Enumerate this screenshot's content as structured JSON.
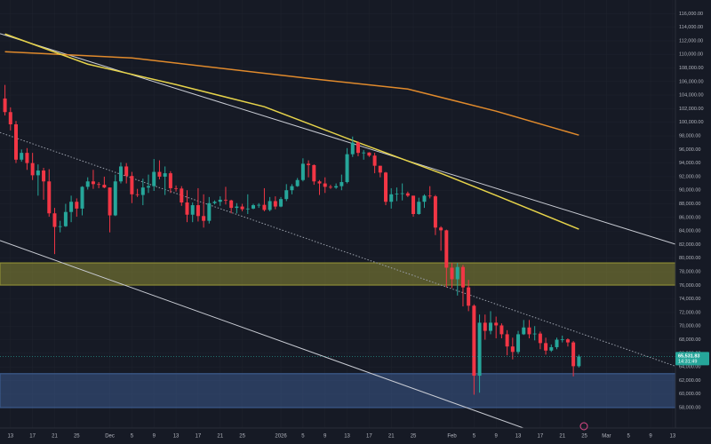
{
  "chart_data": {
    "type": "candlestick",
    "up_color": "#26a69a",
    "down_color": "#f23645",
    "xlim": [
      -1.9,
      120.5
    ],
    "ylim": [
      55000,
      118000
    ],
    "grid": true,
    "xticks": [
      {
        "value": 0,
        "label": "13"
      },
      {
        "value": 4,
        "label": "17"
      },
      {
        "value": 8,
        "label": "21"
      },
      {
        "value": 12,
        "label": "25"
      },
      {
        "value": 18,
        "label": "Dec"
      },
      {
        "value": 22,
        "label": "5"
      },
      {
        "value": 26,
        "label": "9"
      },
      {
        "value": 30,
        "label": "13"
      },
      {
        "value": 34,
        "label": "17"
      },
      {
        "value": 38,
        "label": "21"
      },
      {
        "value": 42,
        "label": "25"
      },
      {
        "value": 49,
        "label": "2026"
      },
      {
        "value": 53,
        "label": "5"
      },
      {
        "value": 57,
        "label": "9"
      },
      {
        "value": 61,
        "label": "13"
      },
      {
        "value": 65,
        "label": "17"
      },
      {
        "value": 69,
        "label": "21"
      },
      {
        "value": 73,
        "label": "25"
      },
      {
        "value": 80,
        "label": "Feb"
      },
      {
        "value": 84,
        "label": "5"
      },
      {
        "value": 88,
        "label": "9"
      },
      {
        "value": 92,
        "label": "13"
      },
      {
        "value": 96,
        "label": "17"
      },
      {
        "value": 100,
        "label": "21"
      },
      {
        "value": 104,
        "label": "25"
      },
      {
        "value": 108,
        "label": "Mar"
      },
      {
        "value": 112,
        "label": "5"
      },
      {
        "value": 116,
        "label": "9"
      },
      {
        "value": 120,
        "label": "13"
      }
    ],
    "yticks": [
      {
        "value": 58000,
        "label": "58,000.00"
      },
      {
        "value": 60000,
        "label": "60,000.00"
      },
      {
        "value": 62000,
        "label": "62,000.00"
      },
      {
        "value": 64000,
        "label": "64,000.00"
      },
      {
        "value": 66000,
        "label": "66,000.00"
      },
      {
        "value": 68000,
        "label": "68,000.00"
      },
      {
        "value": 70000,
        "label": "70,000.00"
      },
      {
        "value": 72000,
        "label": "72,000.00"
      },
      {
        "value": 74000,
        "label": "74,000.00"
      },
      {
        "value": 76000,
        "label": "76,000.00"
      },
      {
        "value": 78000,
        "label": "78,000.00"
      },
      {
        "value": 80000,
        "label": "80,000.00"
      },
      {
        "value": 82000,
        "label": "82,000.00"
      },
      {
        "value": 84000,
        "label": "84,000.00"
      },
      {
        "value": 86000,
        "label": "86,000.00"
      },
      {
        "value": 88000,
        "label": "88,000.00"
      },
      {
        "value": 90000,
        "label": "90,000.00"
      },
      {
        "value": 92000,
        "label": "92,000.00"
      },
      {
        "value": 94000,
        "label": "94,000.00"
      },
      {
        "value": 96000,
        "label": "96,000.00"
      },
      {
        "value": 98000,
        "label": "98,000.00"
      },
      {
        "value": 100000,
        "label": "100,000.00"
      },
      {
        "value": 102000,
        "label": "102,000.00"
      },
      {
        "value": 104000,
        "label": "104,000.00"
      },
      {
        "value": 106000,
        "label": "106,000.00"
      },
      {
        "value": 108000,
        "label": "108,000.00"
      },
      {
        "value": 110000,
        "label": "110,000.00"
      },
      {
        "value": 112000,
        "label": "112,000.00"
      },
      {
        "value": 114000,
        "label": "114,000.00"
      },
      {
        "value": 116000,
        "label": "116,000.00"
      }
    ],
    "zones": [
      {
        "low": 76040,
        "high": 79300,
        "color": "#8c8a35"
      },
      {
        "low": 58010,
        "high": 63000,
        "color": "#3c5a8c"
      }
    ],
    "trendlines": [
      {
        "x": [
          -1.9,
          120.5
        ],
        "values": [
          113050,
          82050
        ],
        "color": "#c9ccd4",
        "dashed": false
      },
      {
        "x": [
          -1.9,
          96.5
        ],
        "values": [
          82600,
          53970
        ],
        "color": "#c9ccd4",
        "dashed": false
      },
      {
        "x": [
          -1.9,
          120.5
        ],
        "values": [
          98500,
          64100
        ],
        "color": "#9aa0ab",
        "dashed": true
      }
    ],
    "series": [
      {
        "color": "#e08a2c",
        "x": [
          -1,
          22,
          54,
          72,
          88,
          103
        ],
        "values": [
          110390,
          109470,
          106470,
          104900,
          101640,
          98110
        ]
      },
      {
        "color": "#e6d34a",
        "x": [
          -1,
          14,
          30,
          46,
          62,
          78,
          88,
          103
        ],
        "values": [
          113000,
          108560,
          105550,
          102290,
          97330,
          92490,
          89230,
          84270
        ]
      }
    ],
    "candles": {
      "x": [
        -1,
        0,
        1,
        2,
        3,
        4,
        5,
        6,
        7,
        8,
        9,
        10,
        11,
        12,
        13,
        14,
        15,
        16,
        17,
        18,
        19,
        20,
        21,
        22,
        23,
        24,
        25,
        26,
        27,
        28,
        29,
        30,
        31,
        32,
        33,
        34,
        35,
        36,
        37,
        38,
        39,
        40,
        41,
        42,
        43,
        44,
        45,
        46,
        47,
        48,
        49,
        50,
        51,
        52,
        53,
        54,
        55,
        56,
        57,
        58,
        59,
        60,
        61,
        62,
        63,
        64,
        65,
        66,
        67,
        68,
        69,
        70,
        71,
        72,
        73,
        74,
        75,
        76,
        77,
        78,
        79,
        80,
        81,
        82,
        83,
        84,
        85,
        86,
        87,
        88,
        89,
        90,
        91,
        92,
        93,
        94,
        95,
        96,
        97,
        98,
        99,
        100,
        101,
        102,
        103
      ],
      "open": [
        103500,
        101500,
        99700,
        94500,
        95500,
        94000,
        92200,
        92900,
        91300,
        86600,
        84600,
        84700,
        86800,
        88300,
        87300,
        90500,
        91300,
        90900,
        90800,
        90400,
        86300,
        91300,
        93500,
        92100,
        89400,
        89300,
        90400,
        90600,
        92700,
        92000,
        92500,
        90300,
        90250,
        88200,
        86400,
        87800,
        86200,
        85500,
        88100,
        88300,
        88600,
        88500,
        87400,
        87600,
        87200,
        87300,
        87800,
        87850,
        87100,
        88400,
        87600,
        88700,
        90000,
        90600,
        91500,
        93900,
        93700,
        91300,
        91000,
        90500,
        90400,
        90600,
        91200,
        95300,
        97000,
        95500,
        95550,
        95100,
        93600,
        92600,
        88300,
        89400,
        89500,
        89550,
        89200,
        86500,
        88300,
        89200,
        89100,
        84500,
        84100,
        78600,
        76900,
        78700,
        75700,
        73000,
        62700,
        70500,
        69300,
        70500,
        70100,
        68800,
        67000,
        66200,
        68800,
        69800,
        68800,
        68900,
        67500,
        66400,
        66900,
        68000,
        68050,
        67600,
        64100
      ],
      "high": [
        105500,
        102200,
        100200,
        96000,
        96200,
        95500,
        93800,
        93300,
        93100,
        87400,
        85500,
        88000,
        89200,
        88800,
        90600,
        91900,
        93000,
        91200,
        92000,
        90400,
        92300,
        94100,
        94000,
        92700,
        90200,
        91700,
        92300,
        94600,
        94400,
        93500,
        92800,
        90700,
        90600,
        90000,
        88200,
        90300,
        89400,
        89000,
        88500,
        89100,
        90500,
        88600,
        88100,
        88000,
        89400,
        88000,
        88100,
        90300,
        89000,
        89100,
        89000,
        90900,
        90900,
        91800,
        94700,
        94400,
        93800,
        91500,
        91900,
        90800,
        91000,
        92300,
        96200,
        97900,
        97200,
        95900,
        95600,
        95500,
        93600,
        92700,
        90300,
        90400,
        91000,
        89800,
        89200,
        88900,
        89400,
        90600,
        89300,
        84700,
        84200,
        79300,
        79300,
        79000,
        76800,
        73200,
        71700,
        71700,
        72200,
        71400,
        70400,
        69400,
        68300,
        69300,
        70900,
        70900,
        70000,
        69200,
        68300,
        67300,
        68300,
        68600,
        68200,
        67800,
        65800
      ],
      "low": [
        101000,
        98800,
        94000,
        94200,
        93000,
        91500,
        89200,
        88600,
        86100,
        80600,
        83800,
        84600,
        85300,
        86100,
        86300,
        90100,
        90200,
        90300,
        90300,
        83800,
        86200,
        91000,
        91000,
        88100,
        89000,
        87800,
        89600,
        89900,
        91600,
        89300,
        89600,
        89800,
        87700,
        85300,
        85300,
        85400,
        84500,
        85100,
        87900,
        87700,
        87900,
        86600,
        86600,
        86900,
        86500,
        87200,
        87400,
        86900,
        86900,
        87200,
        87500,
        88400,
        89400,
        90500,
        91300,
        91900,
        90800,
        89300,
        89600,
        90200,
        90200,
        90000,
        91000,
        94900,
        95000,
        94500,
        94900,
        92500,
        91900,
        87800,
        87300,
        88400,
        88500,
        89000,
        86100,
        86400,
        87400,
        88800,
        83400,
        81100,
        75700,
        75600,
        74500,
        72900,
        72200,
        59900,
        60200,
        68000,
        68800,
        68200,
        68200,
        65700,
        65100,
        65900,
        68700,
        68200,
        67900,
        66600,
        65800,
        66200,
        66600,
        67600,
        67000,
        62600,
        63900
      ],
      "close": [
        101500,
        99700,
        94500,
        95500,
        94000,
        92200,
        92900,
        91300,
        86600,
        84600,
        84700,
        86800,
        88300,
        87300,
        90500,
        91300,
        90900,
        90800,
        90400,
        86300,
        91300,
        93500,
        92100,
        89400,
        89300,
        90400,
        90600,
        92700,
        92000,
        92500,
        90300,
        90250,
        88200,
        86400,
        87800,
        86200,
        85500,
        88100,
        88300,
        88600,
        88500,
        87400,
        87600,
        87200,
        87300,
        87800,
        87850,
        87100,
        88400,
        87600,
        88700,
        90000,
        90600,
        91500,
        93900,
        93700,
        91300,
        91000,
        90500,
        90400,
        90600,
        91200,
        95300,
        97000,
        95500,
        95550,
        95100,
        93600,
        92600,
        88300,
        89400,
        89500,
        89550,
        89200,
        86500,
        88300,
        89200,
        89100,
        84500,
        84100,
        78600,
        76900,
        78700,
        75700,
        73000,
        62700,
        70500,
        69300,
        70500,
        70100,
        68800,
        67000,
        66200,
        68800,
        69800,
        68800,
        68900,
        67500,
        66400,
        66900,
        68000,
        68050,
        67600,
        64100,
        65531.83
      ]
    },
    "last_price": {
      "value": 65531.83,
      "label": "65,531.83"
    },
    "countdown": "14:31:49"
  }
}
